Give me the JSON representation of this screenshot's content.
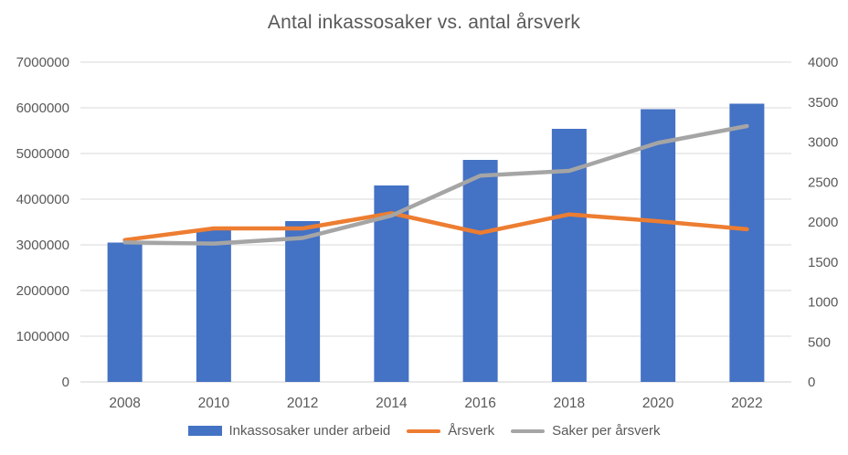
{
  "title": "Antal inkassosaker vs. antal årsverk",
  "chart_data": {
    "type": "combo",
    "title": "Antal inkassosaker vs. antal årsverk",
    "categories": [
      "2008",
      "2010",
      "2012",
      "2014",
      "2016",
      "2018",
      "2020",
      "2022"
    ],
    "series": [
      {
        "name": "Inkassosaker under arbeid",
        "type": "bar",
        "axis": "left",
        "color": "#4472C4",
        "values": [
          3050000,
          3330000,
          3520000,
          4300000,
          4860000,
          5540000,
          5970000,
          6090000
        ]
      },
      {
        "name": "Årsverk",
        "type": "line",
        "axis": "right",
        "color": "#ED7D31",
        "values": [
          1775,
          1920,
          1920,
          2110,
          1865,
          2095,
          2010,
          1910
        ]
      },
      {
        "name": "Saker per årsverk",
        "type": "line",
        "axis": "right",
        "color": "#A5A5A5",
        "values": [
          1745,
          1730,
          1800,
          2080,
          2580,
          2640,
          2990,
          3200
        ]
      }
    ],
    "left_axis": {
      "min": 0,
      "max": 7000000,
      "step": 1000000,
      "tick_labels": [
        "0",
        "1000000",
        "2000000",
        "3000000",
        "4000000",
        "5000000",
        "6000000",
        "7000000"
      ]
    },
    "right_axis": {
      "min": 0,
      "max": 4000,
      "step": 500,
      "tick_labels": [
        "0",
        "500",
        "1000",
        "1500",
        "2000",
        "2500",
        "3000",
        "3500",
        "4000"
      ]
    },
    "grid": true,
    "legend_position": "bottom"
  },
  "colors": {
    "background": "#FFFFFF",
    "gridline": "#D9D9D9",
    "axis_line": "#D0D0D0",
    "tick_text": "#595959",
    "title_text": "#595959"
  }
}
